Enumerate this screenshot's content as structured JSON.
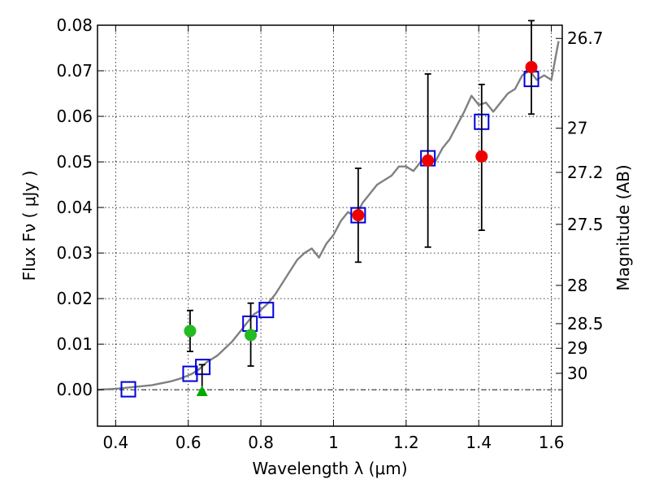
{
  "chart_data": {
    "type": "scatter",
    "xlabel": "Wavelength  λ (μm)",
    "ylabel": "Flux  Fν  ( μJy )",
    "ylabel_right": "Magnitude (AB)",
    "xlim": [
      0.35,
      1.63
    ],
    "ylim": [
      -0.008,
      0.08
    ],
    "grid": true,
    "x_ticks": [
      0.4,
      0.6,
      0.8,
      1.0,
      1.2,
      1.4,
      1.6
    ],
    "x_tick_labels": [
      "0.4",
      "0.6",
      "0.8",
      "1",
      "1.2",
      "1.4",
      "1.6"
    ],
    "y_ticks": [
      0.0,
      0.01,
      0.02,
      0.03,
      0.04,
      0.05,
      0.06,
      0.07,
      0.08
    ],
    "y_tick_labels": [
      "0.00",
      "0.01",
      "0.02",
      "0.03",
      "0.04",
      "0.05",
      "0.06",
      "0.07",
      "0.08"
    ],
    "magnitude_ticks": [
      {
        "label": "26.7",
        "flux": 0.0771
      },
      {
        "label": "27",
        "flux": 0.0574
      },
      {
        "label": "27.2",
        "flux": 0.0477
      },
      {
        "label": "27.5",
        "flux": 0.0363
      },
      {
        "label": "28",
        "flux": 0.0229
      },
      {
        "label": "28.5",
        "flux": 0.0145
      },
      {
        "label": "29",
        "flux": 0.0091
      },
      {
        "label": "30",
        "flux": 0.0036
      }
    ],
    "model_sed": {
      "color": "#808080",
      "x": [
        0.35,
        0.4,
        0.45,
        0.5,
        0.55,
        0.58,
        0.61,
        0.63,
        0.65,
        0.68,
        0.7,
        0.72,
        0.74,
        0.76,
        0.78,
        0.8,
        0.82,
        0.84,
        0.86,
        0.88,
        0.9,
        0.92,
        0.94,
        0.96,
        0.98,
        1.0,
        1.02,
        1.04,
        1.06,
        1.08,
        1.1,
        1.12,
        1.14,
        1.16,
        1.18,
        1.2,
        1.22,
        1.24,
        1.26,
        1.28,
        1.3,
        1.32,
        1.34,
        1.36,
        1.38,
        1.4,
        1.42,
        1.44,
        1.46,
        1.48,
        1.5,
        1.52,
        1.54,
        1.56,
        1.58,
        1.6,
        1.62
      ],
      "y": [
        0.0,
        0.0002,
        0.0006,
        0.001,
        0.0018,
        0.0025,
        0.0035,
        0.0045,
        0.006,
        0.0075,
        0.009,
        0.0105,
        0.0125,
        0.0145,
        0.0165,
        0.0175,
        0.019,
        0.021,
        0.0235,
        0.026,
        0.0285,
        0.03,
        0.031,
        0.029,
        0.032,
        0.034,
        0.037,
        0.039,
        0.038,
        0.041,
        0.043,
        0.045,
        0.046,
        0.047,
        0.049,
        0.049,
        0.048,
        0.05,
        0.051,
        0.05,
        0.053,
        0.055,
        0.058,
        0.061,
        0.0645,
        0.0625,
        0.063,
        0.061,
        0.063,
        0.065,
        0.066,
        0.069,
        0.07,
        0.068,
        0.069,
        0.068,
        0.0765
      ]
    },
    "series": [
      {
        "marker": "square-open",
        "color": "#0000dd",
        "x": [
          0.435,
          0.605,
          0.64,
          0.77,
          0.815,
          1.068,
          1.26,
          1.408,
          1.545
        ],
        "y": [
          0.0001,
          0.0035,
          0.005,
          0.0145,
          0.0175,
          0.0383,
          0.0508,
          0.0588,
          0.0682
        ]
      },
      {
        "marker": "circle",
        "color": "#22bb22",
        "x": [
          0.605,
          0.772
        ],
        "y": [
          0.0129,
          0.012
        ],
        "yerr_low": [
          0.0045,
          0.0068
        ],
        "yerr_high": [
          0.0045,
          0.007
        ]
      },
      {
        "marker": "triangle-up",
        "color": "#00aa00",
        "x": [
          0.638
        ],
        "y": [
          -0.0005
        ],
        "yerr_low": [
          0.0
        ],
        "yerr_high": [
          0.006
        ]
      },
      {
        "marker": "circle",
        "color": "#ee0000",
        "x": [
          1.068,
          1.26,
          1.408,
          1.545
        ],
        "y": [
          0.0383,
          0.0503,
          0.0512,
          0.0708
        ],
        "yerr_low": [
          0.0103,
          0.019,
          0.0162,
          0.0103
        ],
        "yerr_high": [
          0.0103,
          0.019,
          0.0158,
          0.0102
        ]
      }
    ]
  }
}
